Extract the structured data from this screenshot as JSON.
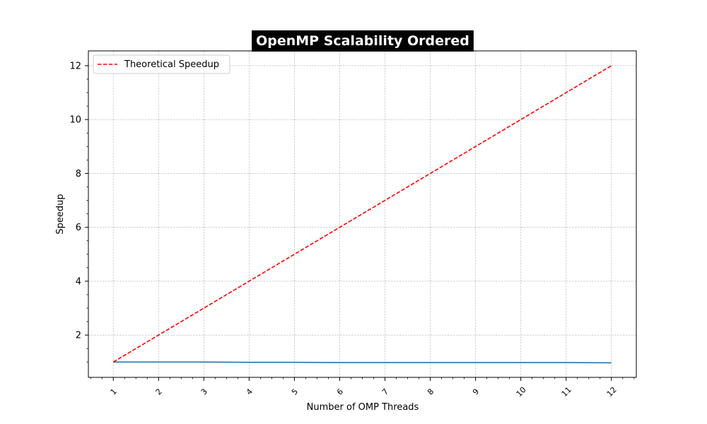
{
  "chart_data": {
    "type": "line",
    "title": "OpenMP Scalability Ordered",
    "xlabel": "Number of OMP Threads",
    "ylabel": "Speedup",
    "x": [
      1,
      2,
      3,
      4,
      5,
      6,
      7,
      8,
      9,
      10,
      11,
      12
    ],
    "xlim": [
      0.45,
      12.55
    ],
    "ylim": [
      0.43,
      12.55
    ],
    "yticks": [
      2,
      4,
      6,
      8,
      10,
      12
    ],
    "grid": true,
    "legend_position": "top-left",
    "series": [
      {
        "values": [
          1.0,
          1.0,
          1.0,
          0.99,
          0.99,
          0.98,
          0.98,
          0.98,
          0.98,
          0.98,
          0.98,
          0.97
        ],
        "color": "#1f77b4",
        "style": "solid"
      },
      {
        "name": "Theoretical Speedup",
        "values": [
          1,
          2,
          3,
          4,
          5,
          6,
          7,
          8,
          9,
          10,
          11,
          12
        ],
        "color": "#ff0000",
        "style": "dashed"
      }
    ]
  }
}
